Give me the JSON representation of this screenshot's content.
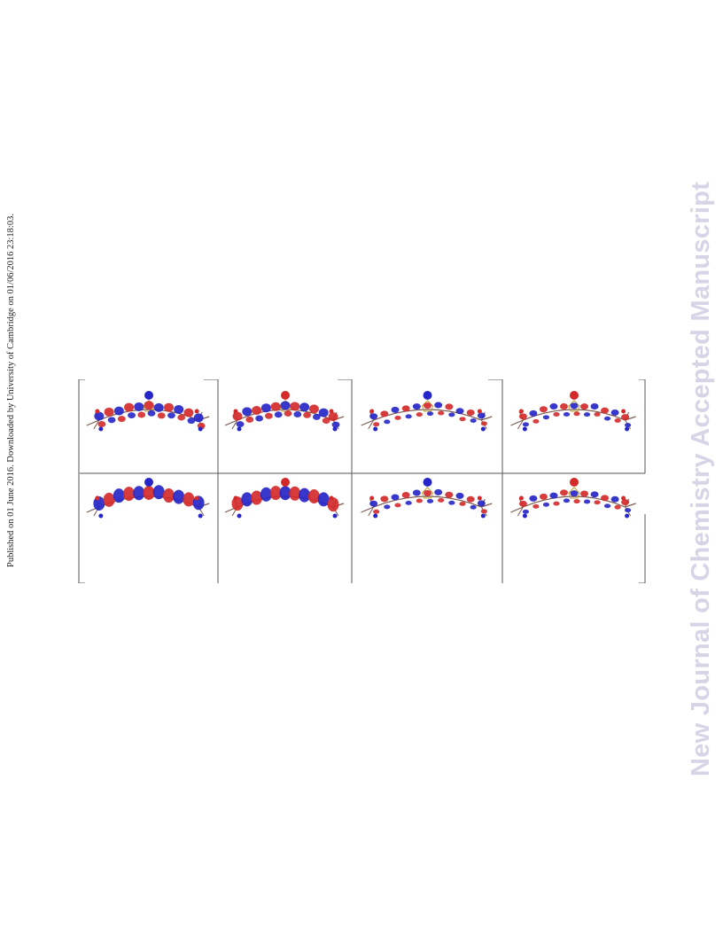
{
  "page": {
    "side_note": "Published on 01 June 2016. Downloaded by University of Cambridge on 01/06/2016 23:18:03.",
    "watermark": "New Journal of Chemistry Accepted Manuscript"
  },
  "colors": {
    "watermark": "#d6d4e6",
    "lobe_red": "#d42a2a",
    "lobe_blue": "#2626c8",
    "bond": "#7a5a50",
    "frame": "#555555"
  },
  "figure": {
    "panels": [
      {
        "row": 1,
        "column": 1,
        "icon": "orbital-isosurface-icon"
      },
      {
        "row": 1,
        "column": 2,
        "icon": "orbital-isosurface-icon"
      },
      {
        "row": 1,
        "column": 3,
        "icon": "orbital-isosurface-icon"
      },
      {
        "row": 1,
        "column": 4,
        "icon": "orbital-isosurface-icon"
      },
      {
        "row": 2,
        "column": 1,
        "icon": "orbital-isosurface-icon"
      },
      {
        "row": 2,
        "column": 2,
        "icon": "orbital-isosurface-icon"
      },
      {
        "row": 2,
        "column": 3,
        "icon": "orbital-isosurface-icon"
      },
      {
        "row": 2,
        "column": 4,
        "icon": "orbital-isosurface-icon"
      }
    ]
  }
}
